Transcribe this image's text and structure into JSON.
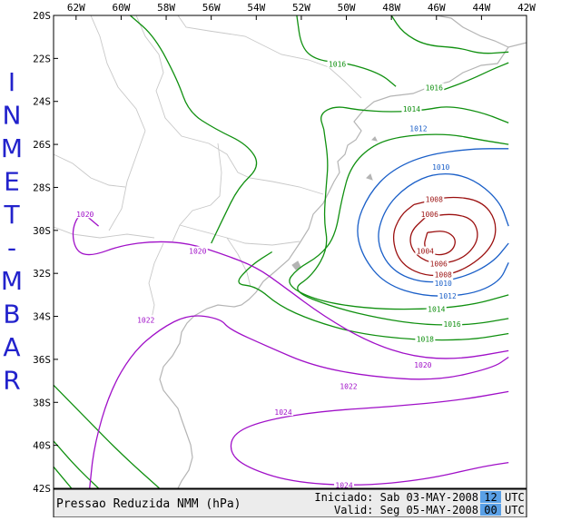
{
  "side_title": "INMET-MBAR",
  "lon_ticks": [
    "62W",
    "60W",
    "58W",
    "56W",
    "54W",
    "52W",
    "50W",
    "48W",
    "46W",
    "44W",
    "42W"
  ],
  "lat_ticks": [
    "20S",
    "22S",
    "24S",
    "26S",
    "28S",
    "30S",
    "32S",
    "34S",
    "36S",
    "38S",
    "40S",
    "42S"
  ],
  "footer": {
    "title": "Pressao Reduzida NMM (hPa)",
    "init_prefix": "Iniciado: Sab 03-MAY-2008",
    "init_hour": "12",
    "valid_prefix": "Valid: Seg 05-MAY-2008",
    "valid_hour": "00",
    "utc": "UTC"
  },
  "colors": {
    "isobar_high": "#a010c8",
    "isobar_mid": "#109010",
    "isobar_low1": "#1a5fc8",
    "isobar_low2": "#9b1010",
    "coast": "#b4b4b4",
    "hour_box": "#5aa0e6",
    "side_title": "#2222cc"
  },
  "contour_labels": [
    {
      "text": "1016",
      "color": "mid",
      "lon": -50.4,
      "lat": -22.3
    },
    {
      "text": "1016",
      "color": "mid",
      "lon": -46.1,
      "lat": -23.4
    },
    {
      "text": "1014",
      "color": "mid",
      "lon": -47.1,
      "lat": -24.4
    },
    {
      "text": "1012",
      "color": "low1",
      "lon": -46.8,
      "lat": -25.3
    },
    {
      "text": "1010",
      "color": "low1",
      "lon": -45.8,
      "lat": -27.1
    },
    {
      "text": "1008",
      "color": "low2",
      "lon": -46.1,
      "lat": -28.6
    },
    {
      "text": "1006",
      "color": "low2",
      "lon": -46.3,
      "lat": -29.3
    },
    {
      "text": "1004",
      "color": "low2",
      "lon": -46.5,
      "lat": -31.0
    },
    {
      "text": "1006",
      "color": "low2",
      "lon": -45.9,
      "lat": -31.6
    },
    {
      "text": "1008",
      "color": "low2",
      "lon": -45.7,
      "lat": -32.1
    },
    {
      "text": "1010",
      "color": "low1",
      "lon": -45.7,
      "lat": -32.5
    },
    {
      "text": "1012",
      "color": "low1",
      "lon": -45.5,
      "lat": -33.1
    },
    {
      "text": "1014",
      "color": "mid",
      "lon": -46.0,
      "lat": -33.7
    },
    {
      "text": "1016",
      "color": "mid",
      "lon": -45.3,
      "lat": -34.4
    },
    {
      "text": "1018",
      "color": "mid",
      "lon": -46.5,
      "lat": -35.1
    },
    {
      "text": "1020",
      "color": "high",
      "lon": -61.6,
      "lat": -29.3
    },
    {
      "text": "1020",
      "color": "high",
      "lon": -56.6,
      "lat": -31.0
    },
    {
      "text": "1022",
      "color": "high",
      "lon": -58.9,
      "lat": -34.2
    },
    {
      "text": "1020",
      "color": "high",
      "lon": -46.6,
      "lat": -36.3
    },
    {
      "text": "1022",
      "color": "high",
      "lon": -49.9,
      "lat": -37.3
    },
    {
      "text": "1024",
      "color": "high",
      "lon": -52.8,
      "lat": -38.5
    },
    {
      "text": "1024",
      "color": "high",
      "lon": -50.1,
      "lat": -41.9
    }
  ],
  "isobars": [
    {
      "color": "mid",
      "pts": [
        [
          -59.6,
          -20
        ],
        [
          -58.5,
          -21
        ],
        [
          -57.5,
          -23
        ],
        [
          -57,
          -24.5
        ],
        [
          -55.8,
          -25.3
        ],
        [
          -54.4,
          -26
        ],
        [
          -53.8,
          -27
        ],
        [
          -54.8,
          -28
        ],
        [
          -55.5,
          -29.5
        ],
        [
          -56,
          -30.6
        ]
      ]
    },
    {
      "color": "mid",
      "pts": [
        [
          -52.2,
          -20
        ],
        [
          -52,
          -21.5
        ],
        [
          -51.3,
          -22.1
        ],
        [
          -50,
          -22.2
        ],
        [
          -48.5,
          -22.7
        ],
        [
          -47.8,
          -23.3
        ]
      ]
    },
    {
      "color": "mid",
      "pts": [
        [
          -45.8,
          -23.5
        ],
        [
          -44.5,
          -23
        ],
        [
          -43.5,
          -22.5
        ],
        [
          -42.8,
          -22.2
        ]
      ]
    },
    {
      "color": "mid",
      "pts": [
        [
          -48,
          -20
        ],
        [
          -47.5,
          -20.8
        ],
        [
          -46.5,
          -21.4
        ],
        [
          -45,
          -21.5
        ],
        [
          -44,
          -21.8
        ],
        [
          -42.8,
          -21.7
        ]
      ]
    },
    {
      "color": "mid",
      "pts": [
        [
          -51,
          -25.3
        ],
        [
          -51.2,
          -24.6
        ],
        [
          -50.5,
          -24.2
        ],
        [
          -49.5,
          -24.4
        ],
        [
          -48,
          -24.5
        ],
        [
          -46.5,
          -24.4
        ],
        [
          -45.5,
          -24.2
        ],
        [
          -44,
          -24.5
        ],
        [
          -42.8,
          -25
        ]
      ]
    },
    {
      "color": "mid",
      "pts": [
        [
          -42.8,
          -26
        ],
        [
          -44,
          -25.8
        ],
        [
          -45.5,
          -25.5
        ],
        [
          -47.5,
          -25.6
        ],
        [
          -48.8,
          -26
        ],
        [
          -49.8,
          -27
        ],
        [
          -50.2,
          -28.5
        ],
        [
          -50.5,
          -30.3
        ],
        [
          -51.2,
          -31.2
        ],
        [
          -52.2,
          -31.8
        ],
        [
          -52.7,
          -32.5
        ],
        [
          -51.5,
          -33.2
        ],
        [
          -49.5,
          -33.6
        ],
        [
          -47,
          -33.7
        ],
        [
          -44.5,
          -33.5
        ],
        [
          -42.8,
          -33
        ]
      ]
    },
    {
      "color": "mid",
      "pts": [
        [
          -42.8,
          -34.1
        ],
        [
          -44.5,
          -34.4
        ],
        [
          -46.5,
          -34.4
        ],
        [
          -48.5,
          -34.1
        ],
        [
          -50.5,
          -33.6
        ],
        [
          -52.5,
          -32.8
        ],
        [
          -51.5,
          -32.1
        ],
        [
          -50.8,
          -30.8
        ],
        [
          -51,
          -29.5
        ],
        [
          -50.9,
          -28
        ],
        [
          -50.8,
          -26.8
        ],
        [
          -51,
          -25.3
        ]
      ]
    },
    {
      "color": "mid",
      "pts": [
        [
          -42.8,
          -34.8
        ],
        [
          -44.5,
          -35.1
        ],
        [
          -47,
          -35.1
        ],
        [
          -49.5,
          -34.8
        ],
        [
          -51.5,
          -34.2
        ],
        [
          -53,
          -33.5
        ],
        [
          -54,
          -32.6
        ],
        [
          -55,
          -32.5
        ],
        [
          -54.2,
          -31.6
        ],
        [
          -53.3,
          -31
        ]
      ]
    },
    {
      "color": "mid",
      "pts": [
        [
          -63,
          -37.2
        ],
        [
          -61.5,
          -38.8
        ],
        [
          -60,
          -40.4
        ],
        [
          -58.3,
          -42
        ]
      ]
    },
    {
      "color": "mid",
      "pts": [
        [
          -63,
          -39.8
        ],
        [
          -62,
          -41
        ],
        [
          -61,
          -42
        ]
      ]
    },
    {
      "color": "mid",
      "pts": [
        [
          -63,
          -41
        ],
        [
          -62.2,
          -42
        ]
      ]
    },
    {
      "color": "low1",
      "pts": [
        [
          -42.8,
          -26.2
        ],
        [
          -44.5,
          -26.2
        ],
        [
          -46.5,
          -26.5
        ],
        [
          -48,
          -27.2
        ],
        [
          -49,
          -28.3
        ],
        [
          -49.6,
          -29.8
        ],
        [
          -49.3,
          -31.2
        ],
        [
          -48.3,
          -32.5
        ],
        [
          -46.5,
          -33.1
        ],
        [
          -44.5,
          -33
        ],
        [
          -43.2,
          -32.4
        ],
        [
          -42.8,
          -31.5
        ]
      ]
    },
    {
      "color": "low1",
      "pts": [
        [
          -42.8,
          -29.8
        ],
        [
          -43.2,
          -28.6
        ],
        [
          -44.5,
          -27.5
        ],
        [
          -46,
          -27.3
        ],
        [
          -47.3,
          -27.9
        ],
        [
          -48.3,
          -29
        ],
        [
          -48.7,
          -30.5
        ],
        [
          -48,
          -31.9
        ],
        [
          -46.5,
          -32.5
        ],
        [
          -44.8,
          -32.2
        ],
        [
          -43.5,
          -31.5
        ],
        [
          -42.8,
          -30.6
        ]
      ]
    },
    {
      "color": "low2",
      "pts": [
        [
          -47,
          -28.8
        ],
        [
          -45.5,
          -28.4
        ],
        [
          -44,
          -28.6
        ],
        [
          -43.3,
          -29.6
        ],
        [
          -43.5,
          -30.8
        ],
        [
          -44.8,
          -31.9
        ],
        [
          -46.3,
          -32.2
        ],
        [
          -47.6,
          -31.6
        ],
        [
          -48,
          -30.3
        ],
        [
          -47.6,
          -29.3
        ],
        [
          -47,
          -28.8
        ]
      ]
    },
    {
      "color": "low2",
      "pts": [
        [
          -46.5,
          -29.4
        ],
        [
          -45.3,
          -29.2
        ],
        [
          -44.3,
          -29.5
        ],
        [
          -44.1,
          -30.5
        ],
        [
          -44.9,
          -31.4
        ],
        [
          -46.2,
          -31.6
        ],
        [
          -47.1,
          -31
        ],
        [
          -47.2,
          -30.1
        ],
        [
          -46.5,
          -29.4
        ]
      ]
    },
    {
      "color": "low2",
      "pts": [
        [
          -46.4,
          -30.1
        ],
        [
          -45.6,
          -30
        ],
        [
          -45.1,
          -30.4
        ],
        [
          -45.3,
          -31
        ],
        [
          -46,
          -31.2
        ],
        [
          -46.6,
          -30.8
        ],
        [
          -46.4,
          -30.1
        ]
      ]
    },
    {
      "color": "high",
      "pts": [
        [
          -63,
          -21
        ]
      ]
    },
    {
      "color": "high",
      "pts": [
        [
          -61,
          -29.8
        ],
        [
          -61.8,
          -29.1
        ],
        [
          -62.2,
          -30
        ],
        [
          -62,
          -31
        ],
        [
          -61.3,
          -31.2
        ],
        [
          -60,
          -30.7
        ],
        [
          -58.5,
          -30.5
        ],
        [
          -57,
          -30.6
        ],
        [
          -55.5,
          -31.1
        ],
        [
          -54,
          -31.7
        ],
        [
          -52.8,
          -32.6
        ],
        [
          -51,
          -34
        ],
        [
          -49,
          -35.2
        ],
        [
          -47,
          -35.9
        ],
        [
          -45,
          -36
        ],
        [
          -42.8,
          -35.6
        ]
      ]
    },
    {
      "color": "high",
      "pts": [
        [
          -61.4,
          -42
        ],
        [
          -61.2,
          -40
        ],
        [
          -60.5,
          -37.5
        ],
        [
          -59.5,
          -35.7
        ],
        [
          -58.3,
          -34.6
        ],
        [
          -57,
          -33.9
        ],
        [
          -55.6,
          -34.1
        ],
        [
          -55.2,
          -34.6
        ],
        [
          -53.5,
          -35.4
        ],
        [
          -51.5,
          -36.3
        ],
        [
          -49,
          -36.8
        ],
        [
          -46,
          -37
        ],
        [
          -43.5,
          -36.4
        ],
        [
          -42.8,
          -35.9
        ]
      ]
    },
    {
      "color": "high",
      "pts": [
        [
          -42.8,
          -37.5
        ],
        [
          -45,
          -37.9
        ],
        [
          -48,
          -38.2
        ],
        [
          -51,
          -38.4
        ],
        [
          -53.5,
          -38.8
        ],
        [
          -55,
          -39.4
        ],
        [
          -55.2,
          -40.3
        ],
        [
          -54.5,
          -41
        ],
        [
          -52.5,
          -41.7
        ],
        [
          -49.5,
          -41.9
        ],
        [
          -46.5,
          -41.6
        ],
        [
          -44,
          -41
        ],
        [
          -42.8,
          -40.8
        ]
      ]
    }
  ]
}
